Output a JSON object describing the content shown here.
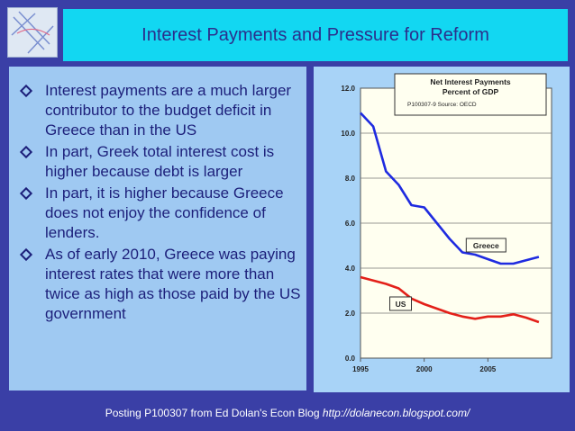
{
  "slide": {
    "title": "Interest Payments and Pressure for Reform",
    "bullets": [
      "Interest payments are a much larger contributor to the budget deficit in Greece than in the US",
      "In part, Greek total interest  cost is higher because debt is larger",
      "In part, it is higher because Greece does not enjoy the confidence of lenders.",
      "As of early 2010, Greece was paying interest rates that were more than twice as high as those paid by the US government"
    ],
    "footer_text": "Posting P100307 from Ed Dolan's Econ Blog ",
    "footer_url": "http://dolanecon.blogspot.com/"
  },
  "colors": {
    "background": "#3a3fa6",
    "title_bar": "#12d7f2",
    "greece_line": "#1f2be0",
    "us_line": "#e32019"
  },
  "chart_data": {
    "type": "line",
    "title": "Net Interest Payments",
    "subtitle": "Percent of GDP",
    "note": "P100307-9 Source: OECD",
    "x": [
      1995,
      1996,
      1997,
      1998,
      1999,
      2000,
      2001,
      2002,
      2003,
      2004,
      2005,
      2006,
      2007,
      2008,
      2009
    ],
    "x_ticks": [
      "1995",
      "2000",
      "2005"
    ],
    "y_ticks": [
      "0.0",
      "2.0",
      "4.0",
      "6.0",
      "8.0",
      "10.0",
      "12.0"
    ],
    "ylim": [
      0,
      12
    ],
    "series": [
      {
        "name": "Greece",
        "values": [
          10.9,
          10.3,
          8.3,
          7.7,
          6.8,
          6.7,
          6.0,
          5.3,
          4.7,
          4.6,
          4.4,
          4.2,
          4.2,
          4.35,
          4.5
        ]
      },
      {
        "name": "US",
        "values": [
          3.6,
          3.45,
          3.3,
          3.1,
          2.65,
          2.4,
          2.2,
          2.0,
          1.85,
          1.75,
          1.85,
          1.85,
          1.95,
          1.8,
          1.6
        ]
      }
    ],
    "grid": true
  }
}
